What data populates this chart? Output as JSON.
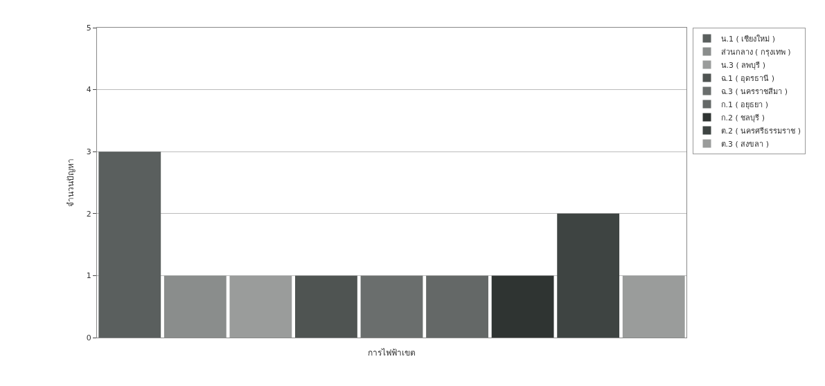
{
  "chart_data": {
    "type": "bar",
    "xlabel": "การไฟฟ้าเขต",
    "ylabel": "จำนวนปัญหา",
    "categories": [
      null
    ],
    "series": [
      {
        "name": "น.1 ( เชียงใหม่ )",
        "color": "#5a5f5e",
        "values": [
          3
        ]
      },
      {
        "name": "ส่วนกลาง ( กรุงเทพ )",
        "color": "#8a8d8c",
        "values": [
          1
        ]
      },
      {
        "name": "น.3 ( ลพบุรี )",
        "color": "#9a9c9b",
        "values": [
          1
        ]
      },
      {
        "name": "ฉ.1 ( อุดรธานี )",
        "color": "#4f5452",
        "values": [
          1
        ]
      },
      {
        "name": "ฉ.3 ( นครราชสีมา )",
        "color": "#6a6e6d",
        "values": [
          1
        ]
      },
      {
        "name": "ก.1 ( อยุธยา )",
        "color": "#646867",
        "values": [
          1
        ]
      },
      {
        "name": "ก.2 ( ชลบุรี )",
        "color": "#2f3432",
        "values": [
          1
        ]
      },
      {
        "name": "ต.2 ( นครศรีธรรมราช )",
        "color": "#3e4442",
        "values": [
          2
        ]
      },
      {
        "name": "ต.3 ( สงขลา )",
        "color": "#9a9c9b",
        "values": [
          1
        ]
      }
    ],
    "ylim": [
      0,
      5
    ],
    "yticks": [
      0,
      1,
      2,
      3,
      4,
      5
    ],
    "grid": "y",
    "legend": "top right"
  }
}
